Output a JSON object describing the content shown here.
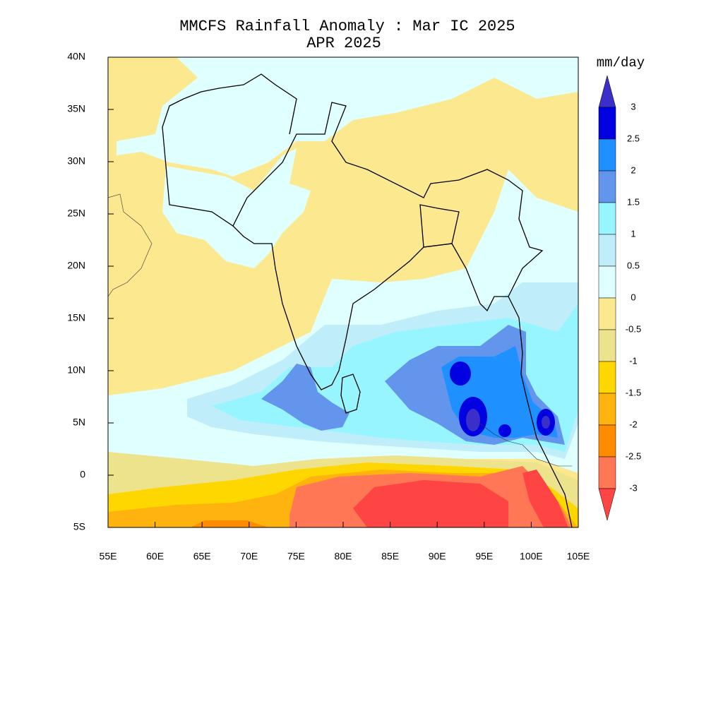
{
  "title": "MMCFS Rainfall Anomaly : Mar IC 2025",
  "subtitle": "APR 2025",
  "map": {
    "type": "contour-map",
    "xlim": [
      55,
      105
    ],
    "ylim": [
      -5,
      40
    ],
    "xticks": [
      {
        "value": 55,
        "label": "55E"
      },
      {
        "value": 60,
        "label": "60E"
      },
      {
        "value": 65,
        "label": "65E"
      },
      {
        "value": 70,
        "label": "70E"
      },
      {
        "value": 75,
        "label": "75E"
      },
      {
        "value": 80,
        "label": "80E"
      },
      {
        "value": 85,
        "label": "85E"
      },
      {
        "value": 90,
        "label": "90E"
      },
      {
        "value": 95,
        "label": "95E"
      },
      {
        "value": 100,
        "label": "100E"
      },
      {
        "value": 105,
        "label": "105E"
      }
    ],
    "yticks": [
      {
        "value": 40,
        "label": "40N"
      },
      {
        "value": 35,
        "label": "35N"
      },
      {
        "value": 30,
        "label": "30N"
      },
      {
        "value": 25,
        "label": "25N"
      },
      {
        "value": 20,
        "label": "20N"
      },
      {
        "value": 15,
        "label": "15N"
      },
      {
        "value": 10,
        "label": "10N"
      },
      {
        "value": 5,
        "label": "5N"
      },
      0,
      {
        "value": -5,
        "label": "5S"
      }
    ]
  },
  "colorbar": {
    "title": "mm/day",
    "levels": [
      3,
      2.5,
      2,
      1.5,
      1,
      0.5,
      0,
      -0.5,
      -1,
      -1.5,
      -2,
      -2.5,
      -3
    ],
    "colors": [
      "#3b2fc9",
      "#0000e0",
      "#1e90ff",
      "#6495ed",
      "#97f5ff",
      "#bfeefa",
      "#e0ffff",
      "#fbe88f",
      "#eee38d",
      "#ffd700",
      "#ffb30f",
      "#ff8c00",
      "#ff7755",
      "#ff4444"
    ]
  }
}
